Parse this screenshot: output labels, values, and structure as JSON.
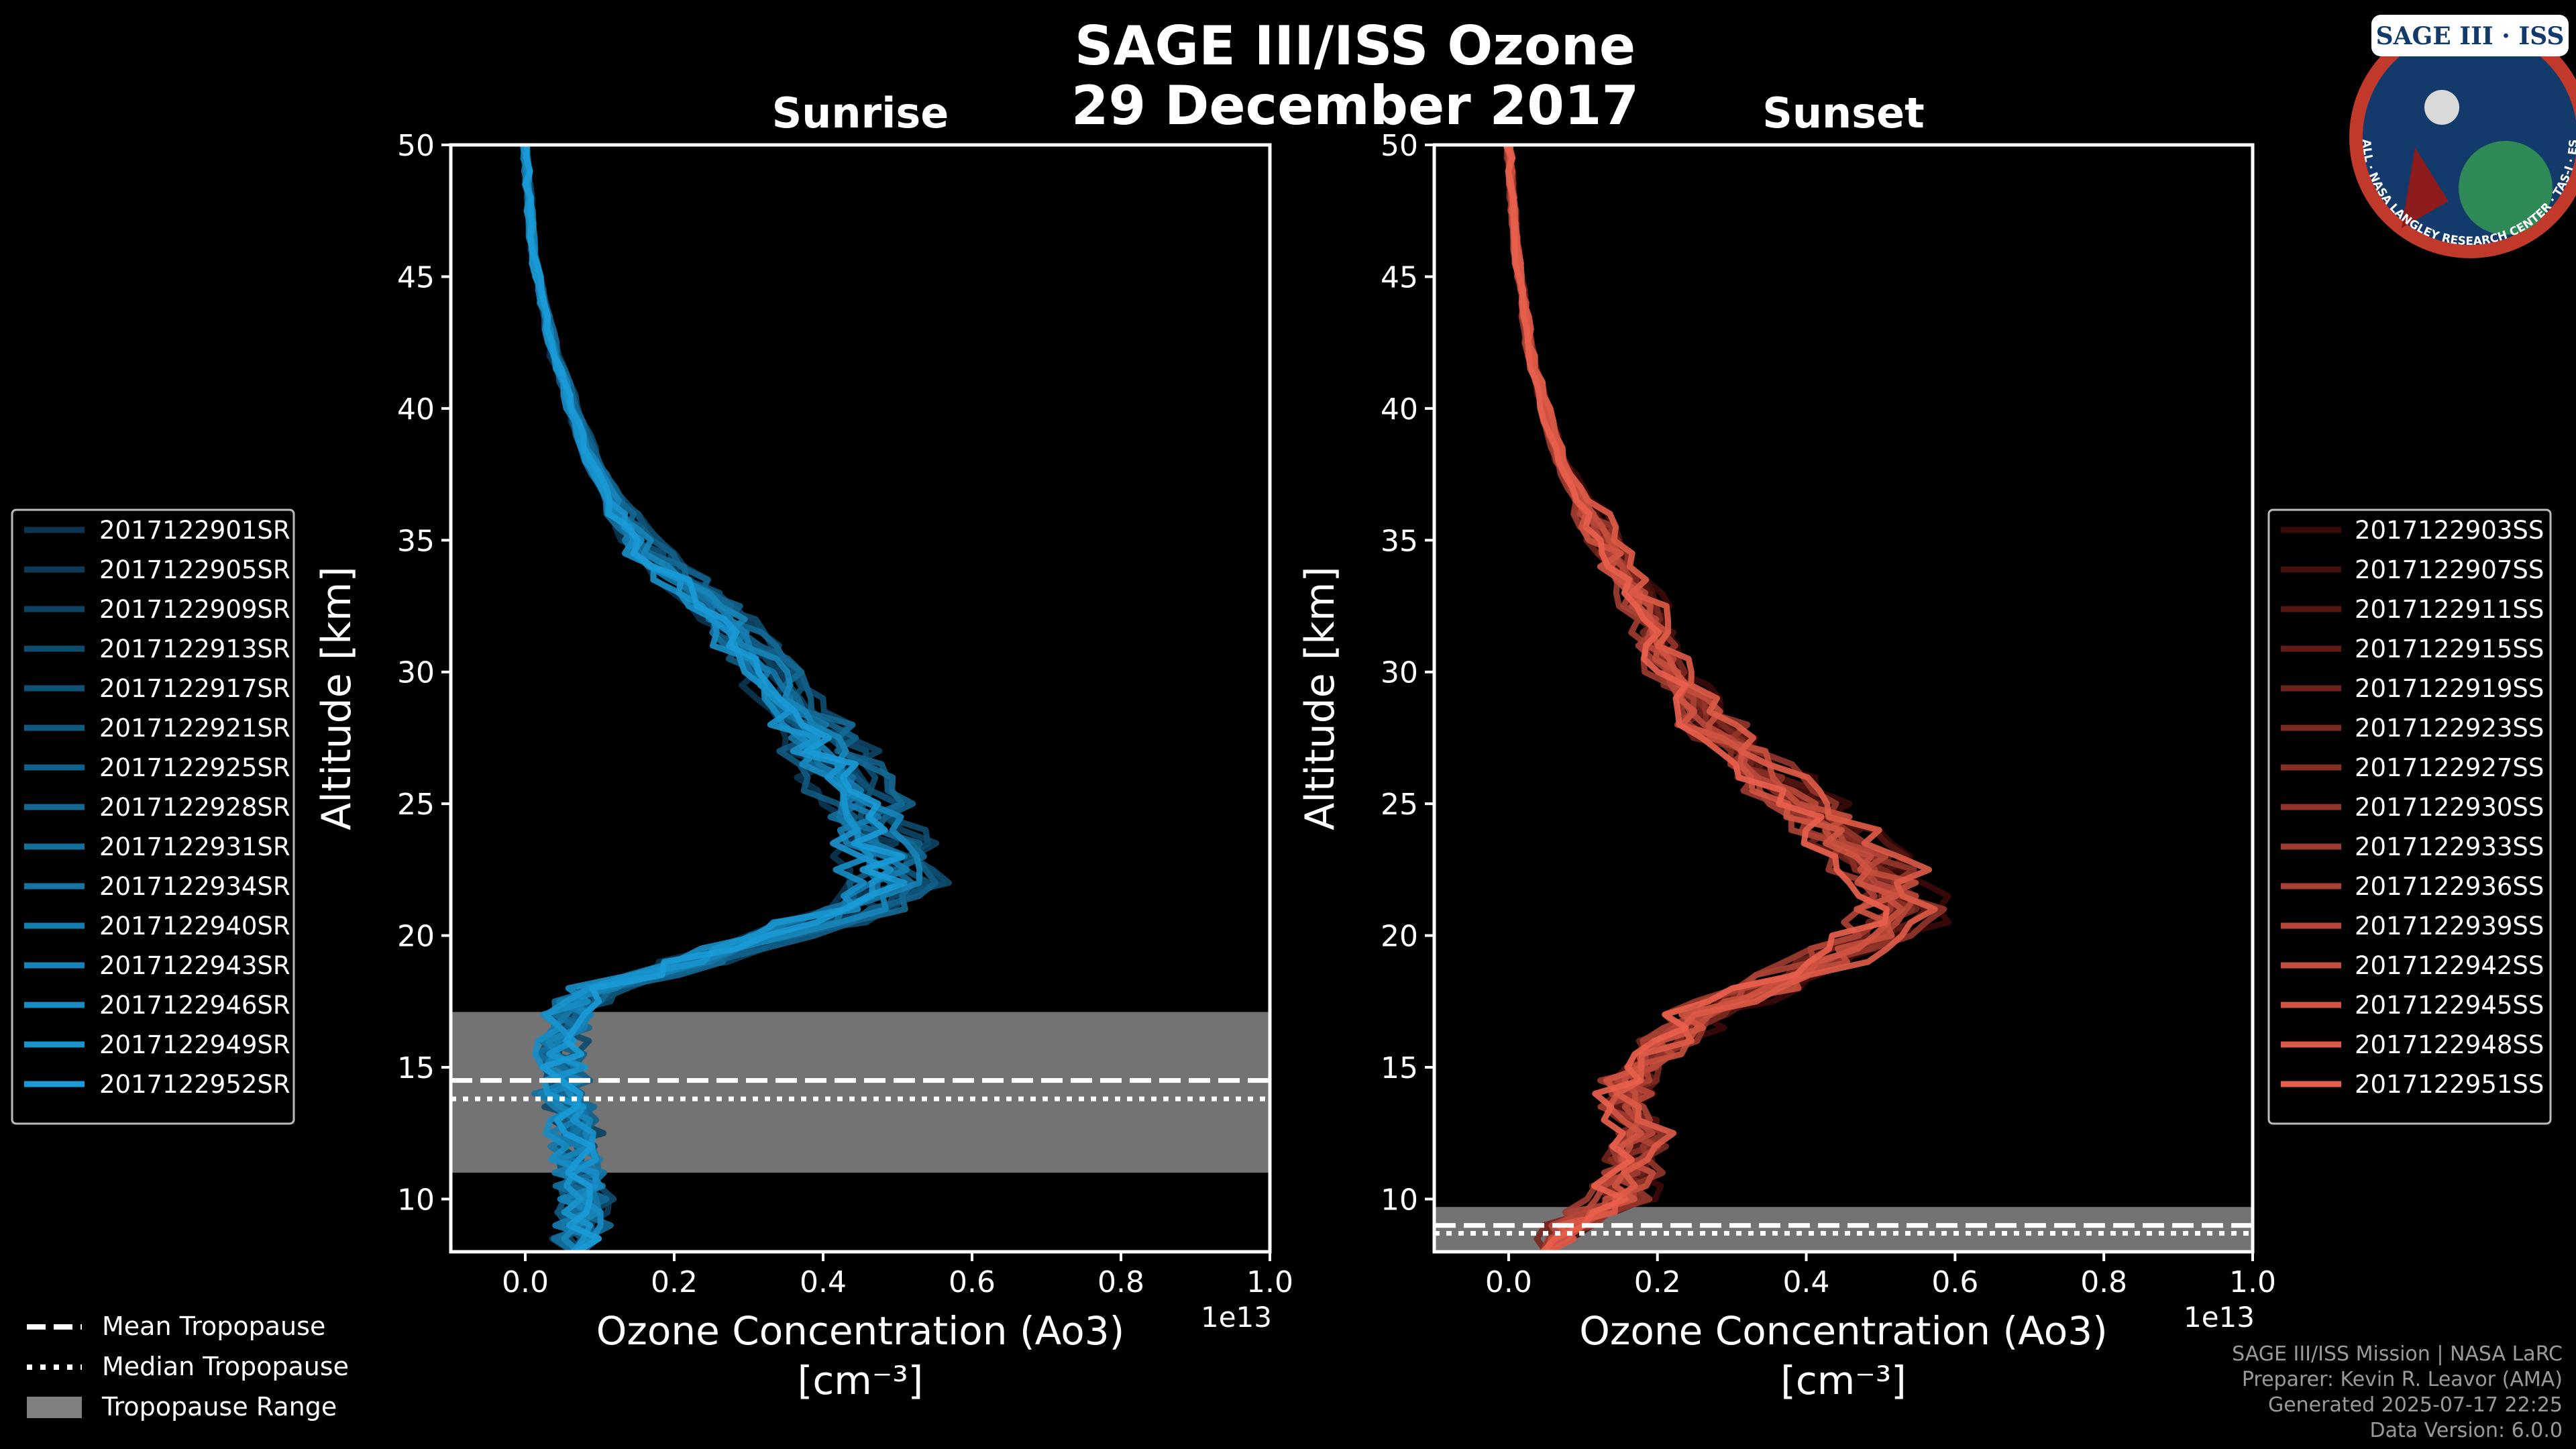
{
  "header": {
    "title_line1": "SAGE III/ISS Ozone",
    "title_line2": "29 December 2017"
  },
  "logo": {
    "text": "SAGE III · ISS",
    "ring_text": "BALL · NASA LANGLEY RESEARCH CENTER · TAS-I · ESA"
  },
  "footer": {
    "line1": "SAGE III/ISS Mission | NASA LaRC",
    "line2": "Preparer: Kevin R. Leavor (AMA)",
    "line3": "Generated 2025-07-17 22:25",
    "line4": "Data Version: 6.0.0"
  },
  "tropopause_legend": [
    {
      "label": "Mean Tropopause",
      "style": "dashed"
    },
    {
      "label": "Median Tropopause",
      "style": "dotted"
    },
    {
      "label": "Tropopause Range",
      "style": "patch"
    }
  ],
  "chart_data": [
    {
      "type": "line",
      "title": "Sunrise",
      "xlabel_line1": "Ozone Concentration (Ao3)",
      "xlabel_line2": "[cm⁻³]",
      "ylabel": "Altitude [km]",
      "x_multiplier": "1e13",
      "xlim": [
        -0.1,
        1.0
      ],
      "ylim": [
        8,
        50
      ],
      "xticks": [
        "0.0",
        "0.2",
        "0.4",
        "0.6",
        "0.8",
        "1.0"
      ],
      "yticks": [
        "10",
        "15",
        "20",
        "25",
        "30",
        "35",
        "40",
        "45",
        "50"
      ],
      "tropopause": {
        "mean": 14.5,
        "median": 13.8,
        "range": [
          11.0,
          17.1
        ]
      },
      "color_dark": "#0b3550",
      "color_light": "#1a9ad6",
      "series_names": [
        "2017122901SR",
        "2017122905SR",
        "2017122909SR",
        "2017122913SR",
        "2017122917SR",
        "2017122921SR",
        "2017122925SR",
        "2017122928SR",
        "2017122931SR",
        "2017122934SR",
        "2017122940SR",
        "2017122943SR",
        "2017122946SR",
        "2017122949SR",
        "2017122952SR"
      ],
      "base_profile": [
        [
          50,
          0.0
        ],
        [
          46,
          0.01
        ],
        [
          42,
          0.04
        ],
        [
          38,
          0.09
        ],
        [
          35,
          0.15
        ],
        [
          32,
          0.27
        ],
        [
          30,
          0.33
        ],
        [
          28,
          0.38
        ],
        [
          26,
          0.44
        ],
        [
          24,
          0.47
        ],
        [
          22,
          0.5
        ],
        [
          21,
          0.46
        ],
        [
          20,
          0.33
        ],
        [
          19,
          0.22
        ],
        [
          18,
          0.1
        ],
        [
          17,
          0.06
        ],
        [
          16,
          0.05
        ],
        [
          14,
          0.05
        ],
        [
          12,
          0.07
        ],
        [
          10,
          0.08
        ],
        [
          8,
          0.07
        ]
      ]
    },
    {
      "type": "line",
      "title": "Sunset",
      "xlabel_line1": "Ozone Concentration (Ao3)",
      "xlabel_line2": "[cm⁻³]",
      "ylabel": "Altitude [km]",
      "x_multiplier": "1e13",
      "xlim": [
        -0.1,
        1.0
      ],
      "ylim": [
        8,
        50
      ],
      "xticks": [
        "0.0",
        "0.2",
        "0.4",
        "0.6",
        "0.8",
        "1.0"
      ],
      "yticks": [
        "10",
        "15",
        "20",
        "25",
        "30",
        "35",
        "40",
        "45",
        "50"
      ],
      "tropopause": {
        "mean": 9.0,
        "median": 8.7,
        "range": [
          8.0,
          9.7
        ]
      },
      "color_dark": "#3a0a08",
      "color_light": "#e8604c",
      "series_names": [
        "2017122903SS",
        "2017122907SS",
        "2017122911SS",
        "2017122915SS",
        "2017122919SS",
        "2017122923SS",
        "2017122927SS",
        "2017122930SS",
        "2017122933SS",
        "2017122936SS",
        "2017122939SS",
        "2017122942SS",
        "2017122945SS",
        "2017122948SS",
        "2017122951SS"
      ],
      "base_profile": [
        [
          50,
          0.0
        ],
        [
          46,
          0.01
        ],
        [
          42,
          0.03
        ],
        [
          38,
          0.07
        ],
        [
          35,
          0.13
        ],
        [
          32,
          0.19
        ],
        [
          30,
          0.22
        ],
        [
          28,
          0.28
        ],
        [
          26,
          0.35
        ],
        [
          24,
          0.44
        ],
        [
          22,
          0.52
        ],
        [
          21,
          0.53
        ],
        [
          20,
          0.5
        ],
        [
          19,
          0.43
        ],
        [
          18,
          0.35
        ],
        [
          17,
          0.26
        ],
        [
          16,
          0.22
        ],
        [
          15,
          0.18
        ],
        [
          14,
          0.16
        ],
        [
          12,
          0.18
        ],
        [
          10,
          0.15
        ],
        [
          9,
          0.08
        ],
        [
          8,
          0.05
        ]
      ]
    }
  ]
}
